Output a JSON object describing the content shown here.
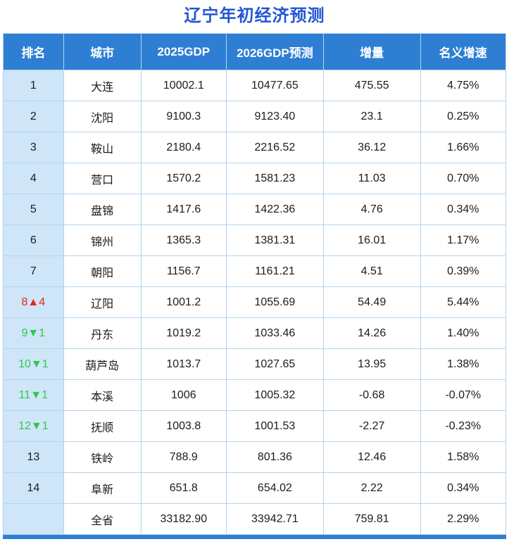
{
  "title": "辽宁年初经济预测",
  "colors": {
    "header_bg": "#2e7fd4",
    "rank_col_bg": "#cfe5f8",
    "title_color": "#2355d4",
    "up_color": "#e8251f",
    "down_color": "#2fc84e",
    "border_color": "#b3d4ee"
  },
  "chart_data": {
    "type": "table",
    "title": "辽宁年初经济预测",
    "columns": [
      "排名",
      "城市",
      "2025GDP",
      "2026GDP预测",
      "增量",
      "名义增速"
    ],
    "rows": [
      {
        "cells": [
          "1",
          "大连",
          "10002.1",
          "10477.65",
          "475.55",
          "4.75%"
        ],
        "rank_trend": "none"
      },
      {
        "cells": [
          "2",
          "沈阳",
          "9100.3",
          "9123.40",
          "23.1",
          "0.25%"
        ],
        "rank_trend": "none"
      },
      {
        "cells": [
          "3",
          "鞍山",
          "2180.4",
          "2216.52",
          "36.12",
          "1.66%"
        ],
        "rank_trend": "none"
      },
      {
        "cells": [
          "4",
          "营口",
          "1570.2",
          "1581.23",
          "11.03",
          "0.70%"
        ],
        "rank_trend": "none"
      },
      {
        "cells": [
          "5",
          "盘锦",
          "1417.6",
          "1422.36",
          "4.76",
          "0.34%"
        ],
        "rank_trend": "none"
      },
      {
        "cells": [
          "6",
          "锦州",
          "1365.3",
          "1381.31",
          "16.01",
          "1.17%"
        ],
        "rank_trend": "none"
      },
      {
        "cells": [
          "7",
          "朝阳",
          "1156.7",
          "1161.21",
          "4.51",
          "0.39%"
        ],
        "rank_trend": "none"
      },
      {
        "cells": [
          "8▲4",
          "辽阳",
          "1001.2",
          "1055.69",
          "54.49",
          "5.44%"
        ],
        "rank_trend": "up"
      },
      {
        "cells": [
          "9▼1",
          "丹东",
          "1019.2",
          "1033.46",
          "14.26",
          "1.40%"
        ],
        "rank_trend": "down"
      },
      {
        "cells": [
          "10▼1",
          "葫芦岛",
          "1013.7",
          "1027.65",
          "13.95",
          "1.38%"
        ],
        "rank_trend": "down"
      },
      {
        "cells": [
          "11▼1",
          "本溪",
          "1006",
          "1005.32",
          "-0.68",
          "-0.07%"
        ],
        "rank_trend": "down"
      },
      {
        "cells": [
          "12▼1",
          "抚顺",
          "1003.8",
          "1001.53",
          "-2.27",
          "-0.23%"
        ],
        "rank_trend": "down"
      },
      {
        "cells": [
          "13",
          "铁岭",
          "788.9",
          "801.36",
          "12.46",
          "1.58%"
        ],
        "rank_trend": "none"
      },
      {
        "cells": [
          "14",
          "阜新",
          "651.8",
          "654.02",
          "2.22",
          "0.34%"
        ],
        "rank_trend": "none"
      },
      {
        "cells": [
          "",
          "全省",
          "33182.90",
          "33942.71",
          "759.81",
          "2.29%"
        ],
        "rank_trend": "none"
      }
    ]
  }
}
